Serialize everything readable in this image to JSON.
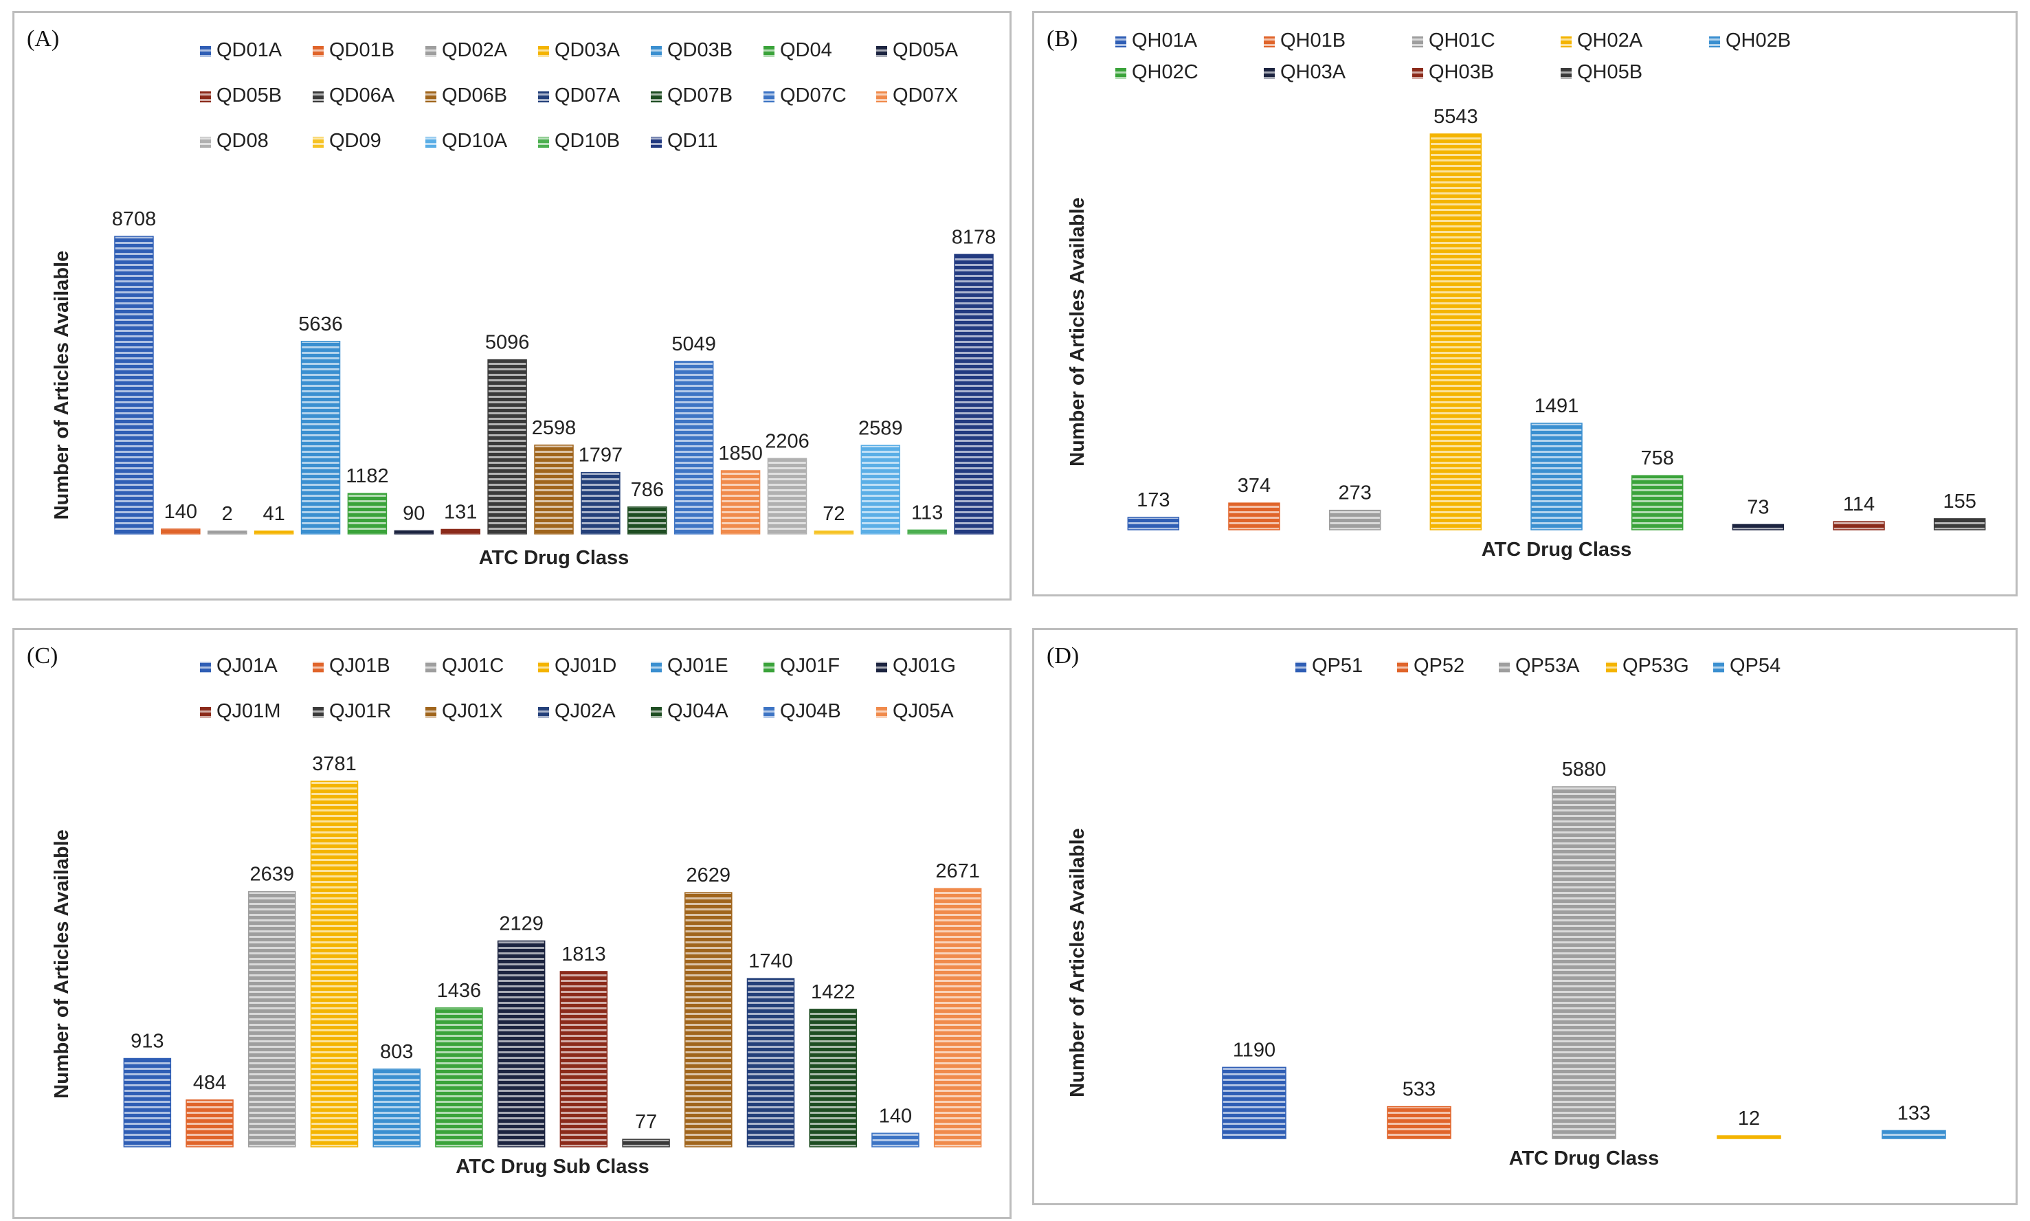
{
  "panels": [
    {
      "id": "A",
      "label": "(A)",
      "chart_data": {
        "type": "bar",
        "title": "",
        "xlabel": "ATC Drug Class",
        "ylabel": "Number of Articles Available",
        "ylim": [
          0,
          8708
        ],
        "categories": [
          "QD01A",
          "QD01B",
          "QD02A",
          "QD03A",
          "QD03B",
          "QD04",
          "QD05A",
          "QD05B",
          "QD06A",
          "QD06B",
          "QD07A",
          "QD07B",
          "QD07C",
          "QD07X",
          "QD08",
          "QD09",
          "QD10A",
          "QD10B",
          "QD11"
        ],
        "values": [
          8708,
          140,
          2,
          41,
          5636,
          1182,
          90,
          131,
          5096,
          2598,
          1797,
          786,
          5049,
          1850,
          2206,
          72,
          2589,
          113,
          8178
        ],
        "colors": [
          "#2f5eb5",
          "#e0642a",
          "#9e9e9e",
          "#f4b400",
          "#3a8fd0",
          "#3aa33a",
          "#1c2440",
          "#8b2a1a",
          "#3a3a3a",
          "#a0651c",
          "#24407a",
          "#1e4d22",
          "#3d74c4",
          "#f08a4b",
          "#b0b0b0",
          "#f6c325",
          "#5aaee6",
          "#4caf50",
          "#223a80"
        ],
        "legend_rows": [
          [
            "QD01A",
            "QD01B",
            "QD02A",
            "QD03A",
            "QD03B",
            "QD04",
            "QD05A"
          ],
          [
            "QD05B",
            "QD06A",
            "QD06B",
            "QD07A",
            "QD07B",
            "QD07C",
            "QD07X"
          ],
          [
            "QD08",
            "QD09",
            "QD10A",
            "QD10B",
            "QD11"
          ]
        ]
      }
    },
    {
      "id": "B",
      "label": "(B)",
      "chart_data": {
        "type": "bar",
        "title": "",
        "xlabel": "ATC Drug Class",
        "ylabel": "Number of Articles Available",
        "ylim": [
          0,
          5543
        ],
        "categories": [
          "QH01A",
          "QH01B",
          "QH01C",
          "QH02A",
          "QH02B",
          "QH02C",
          "QH03A",
          "QH03B",
          "QH05B"
        ],
        "values": [
          173,
          374,
          273,
          5543,
          1491,
          758,
          73,
          114,
          155
        ],
        "colors": [
          "#2f5eb5",
          "#e0642a",
          "#9e9e9e",
          "#f4b400",
          "#3a8fd0",
          "#3aa33a",
          "#1c2440",
          "#8b2a1a",
          "#3a3a3a"
        ],
        "legend_rows": [
          [
            "QH01A",
            "QH01B",
            "QH01C",
            "QH02A",
            "QH02B"
          ],
          [
            "QH02C",
            "QH03A",
            "QH03B",
            "QH05B"
          ]
        ]
      }
    },
    {
      "id": "C",
      "label": "(C)",
      "chart_data": {
        "type": "bar",
        "title": "",
        "xlabel": "ATC Drug Sub Class",
        "ylabel": "Number of Articles Available",
        "ylim": [
          0,
          3781
        ],
        "categories": [
          "QJ01A",
          "QJ01B",
          "QJ01C",
          "QJ01D",
          "QJ01E",
          "QJ01F",
          "QJ01G",
          "QJ01M",
          "QJ01R",
          "QJ01X",
          "QJ02A",
          "QJ04A",
          "QJ04B",
          "QJ05A"
        ],
        "values": [
          913,
          484,
          2639,
          3781,
          803,
          1436,
          2129,
          1813,
          77,
          2629,
          1740,
          1422,
          140,
          2671
        ],
        "colors": [
          "#2f5eb5",
          "#e0642a",
          "#9e9e9e",
          "#f4b400",
          "#3a8fd0",
          "#3aa33a",
          "#1c2440",
          "#8b2a1a",
          "#3a3a3a",
          "#a0651c",
          "#24407a",
          "#1e4d22",
          "#3d74c4",
          "#f08a4b"
        ],
        "legend_rows": [
          [
            "QJ01A",
            "QJ01B",
            "QJ01C",
            "QJ01D",
            "QJ01E",
            "QJ01F",
            "QJ01G"
          ],
          [
            "QJ01M",
            "QJ01R",
            "QJ01X",
            "QJ02A",
            "QJ04A",
            "QJ04B",
            "QJ05A"
          ]
        ]
      }
    },
    {
      "id": "D",
      "label": "(D)",
      "chart_data": {
        "type": "bar",
        "title": "",
        "xlabel": "ATC Drug Class",
        "ylabel": "Number of Articles Available",
        "ylim": [
          0,
          5880
        ],
        "categories": [
          "QP51",
          "QP52",
          "QP53A",
          "QP53G",
          "QP54"
        ],
        "values": [
          1190,
          533,
          5880,
          12,
          133
        ],
        "colors": [
          "#2f5eb5",
          "#e0642a",
          "#9e9e9e",
          "#f4b400",
          "#3a8fd0"
        ],
        "legend_rows": [
          [
            "QP51",
            "QP52",
            "QP53A",
            "QP53G",
            "QP54"
          ]
        ]
      }
    }
  ]
}
